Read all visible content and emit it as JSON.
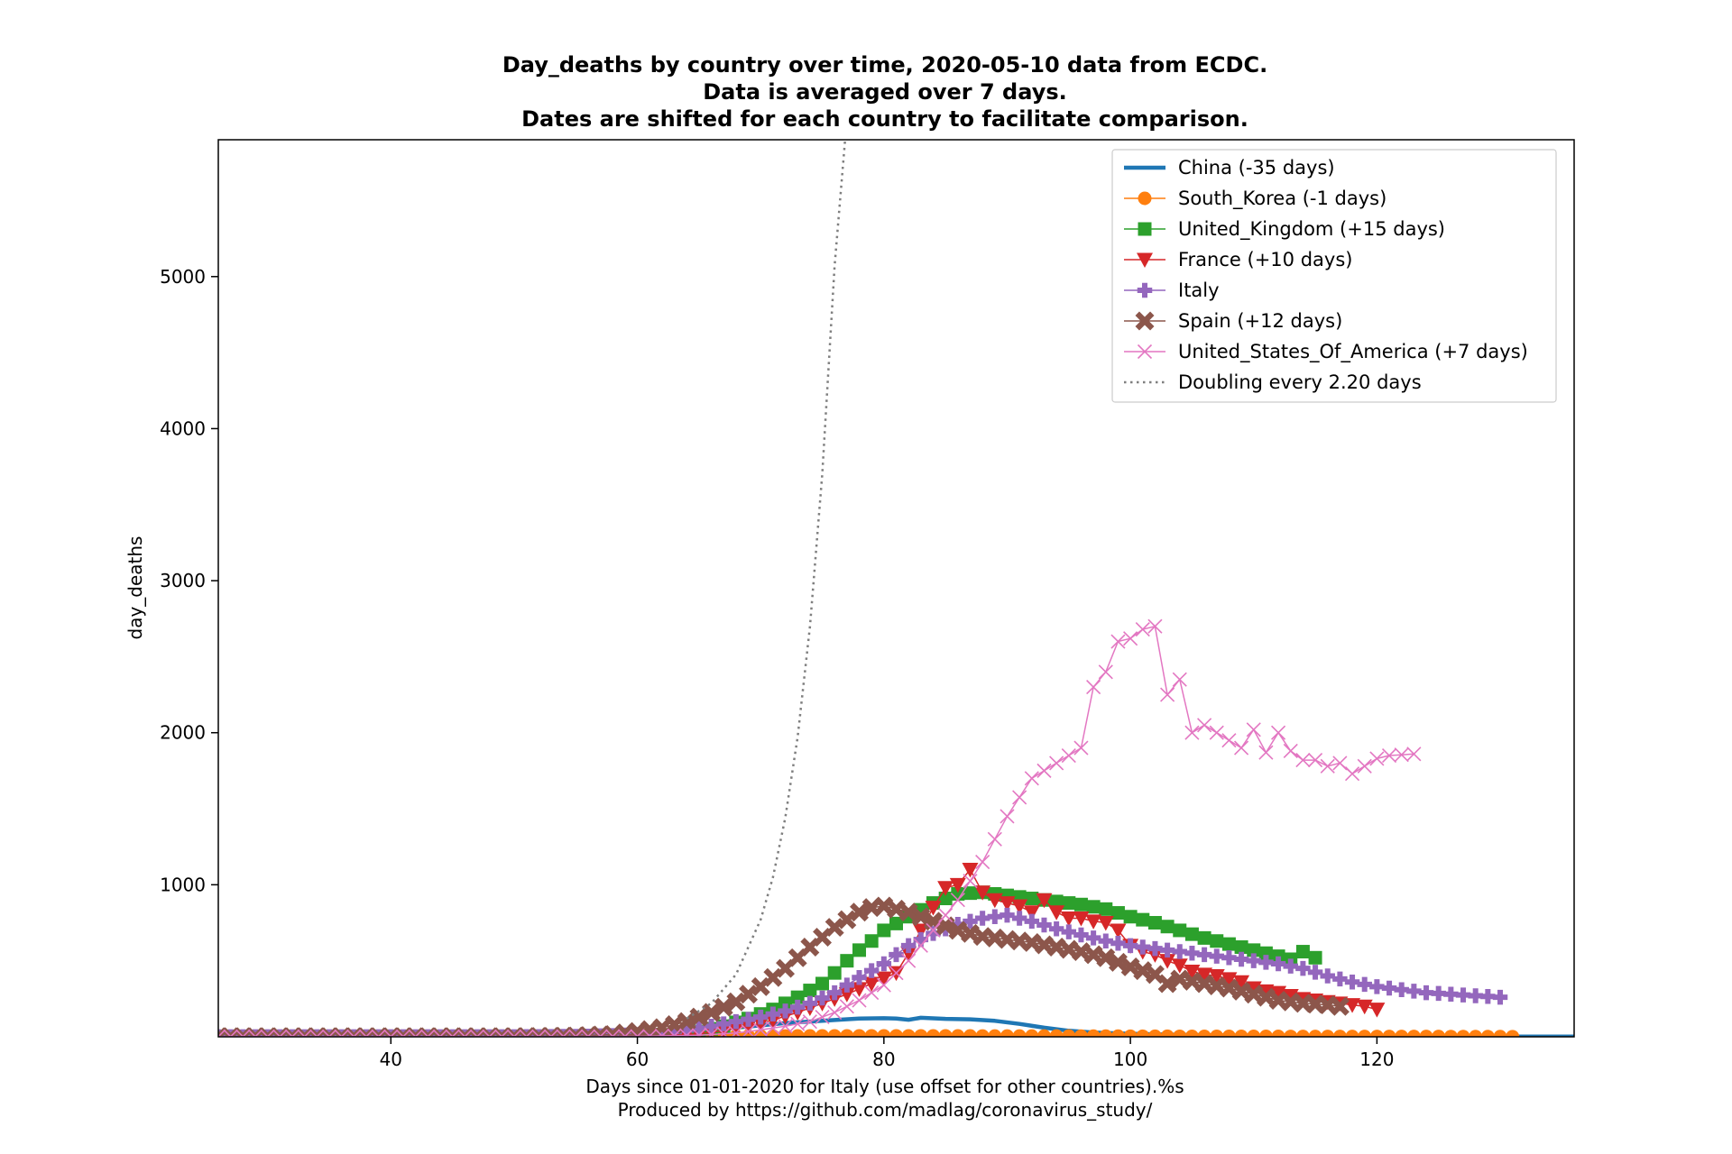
{
  "chart_data": {
    "type": "line",
    "title": [
      "Day_deaths by country over time, 2020-05-10 data from ECDC.",
      "Data is averaged over 7 days.",
      "Dates are shifted for each country to facilitate comparison."
    ],
    "xlabel": [
      "Days since 01-01-2020 for Italy (use offset for other countries).%s",
      "Produced by https://github.com/madlag/coronavirus_study/"
    ],
    "ylabel": "day_deaths",
    "xlim": [
      26,
      136
    ],
    "ylim": [
      0,
      5900
    ],
    "xticks": [
      40,
      60,
      80,
      100,
      120
    ],
    "yticks": [
      1000,
      2000,
      3000,
      4000,
      5000
    ],
    "grid": false,
    "legend_position": "top-right",
    "series": [
      {
        "name": "China (-35 days)",
        "color": "#1f77b4",
        "marker": "none",
        "linewidth": 4.5,
        "points": [
          [
            26,
            3
          ],
          [
            40,
            5
          ],
          [
            50,
            6
          ],
          [
            60,
            15
          ],
          [
            65,
            40
          ],
          [
            68,
            60
          ],
          [
            70,
            75
          ],
          [
            72,
            90
          ],
          [
            74,
            100
          ],
          [
            76,
            110
          ],
          [
            78,
            120
          ],
          [
            80,
            122
          ],
          [
            81,
            120
          ],
          [
            82,
            112
          ],
          [
            83,
            125
          ],
          [
            85,
            118
          ],
          [
            87,
            115
          ],
          [
            89,
            105
          ],
          [
            91,
            85
          ],
          [
            93,
            60
          ],
          [
            95,
            40
          ],
          [
            97,
            28
          ],
          [
            100,
            20
          ],
          [
            105,
            12
          ],
          [
            110,
            8
          ],
          [
            120,
            4
          ],
          [
            130,
            2
          ],
          [
            136,
            2
          ]
        ]
      },
      {
        "name": "South_Korea (-1 days)",
        "color": "#ff7f0e",
        "marker": "circle",
        "linewidth": 1.5,
        "points": [
          [
            26,
            2
          ],
          [
            40,
            2
          ],
          [
            50,
            2
          ],
          [
            60,
            3
          ],
          [
            65,
            4
          ],
          [
            70,
            5
          ],
          [
            75,
            6
          ],
          [
            80,
            6
          ],
          [
            85,
            6
          ],
          [
            90,
            5
          ],
          [
            95,
            5
          ],
          [
            100,
            4
          ],
          [
            105,
            3
          ],
          [
            110,
            3
          ],
          [
            115,
            2
          ],
          [
            120,
            2
          ],
          [
            125,
            2
          ],
          [
            131,
            1
          ]
        ]
      },
      {
        "name": "United_Kingdom (+15 days)",
        "color": "#2ca02c",
        "marker": "square",
        "linewidth": 1.5,
        "points": [
          [
            26,
            1
          ],
          [
            40,
            1
          ],
          [
            50,
            1
          ],
          [
            60,
            5
          ],
          [
            63,
            15
          ],
          [
            65,
            35
          ],
          [
            67,
            70
          ],
          [
            69,
            120
          ],
          [
            71,
            180
          ],
          [
            73,
            260
          ],
          [
            75,
            350
          ],
          [
            76,
            420
          ],
          [
            77,
            500
          ],
          [
            78,
            570
          ],
          [
            79,
            630
          ],
          [
            80,
            700
          ],
          [
            82,
            790
          ],
          [
            84,
            880
          ],
          [
            86,
            940
          ],
          [
            88,
            950
          ],
          [
            90,
            930
          ],
          [
            92,
            910
          ],
          [
            94,
            890
          ],
          [
            96,
            870
          ],
          [
            98,
            840
          ],
          [
            100,
            790
          ],
          [
            102,
            750
          ],
          [
            104,
            700
          ],
          [
            106,
            650
          ],
          [
            108,
            610
          ],
          [
            110,
            570
          ],
          [
            112,
            530
          ],
          [
            113,
            510
          ],
          [
            114,
            560
          ],
          [
            115,
            520
          ]
        ]
      },
      {
        "name": "France (+10 days)",
        "color": "#d62728",
        "marker": "triangle-down",
        "linewidth": 1.5,
        "points": [
          [
            26,
            1
          ],
          [
            40,
            1
          ],
          [
            50,
            1
          ],
          [
            60,
            3
          ],
          [
            63,
            10
          ],
          [
            65,
            20
          ],
          [
            67,
            40
          ],
          [
            69,
            70
          ],
          [
            71,
            110
          ],
          [
            73,
            160
          ],
          [
            75,
            220
          ],
          [
            77,
            280
          ],
          [
            79,
            350
          ],
          [
            81,
            420
          ],
          [
            82,
            550
          ],
          [
            83,
            700
          ],
          [
            84,
            850
          ],
          [
            85,
            980
          ],
          [
            86,
            1000
          ],
          [
            87,
            1100
          ],
          [
            88,
            950
          ],
          [
            89,
            900
          ],
          [
            90,
            880
          ],
          [
            91,
            860
          ],
          [
            92,
            820
          ],
          [
            93,
            900
          ],
          [
            94,
            820
          ],
          [
            95,
            780
          ],
          [
            96,
            780
          ],
          [
            97,
            760
          ],
          [
            98,
            750
          ],
          [
            99,
            700
          ],
          [
            100,
            600
          ],
          [
            101,
            560
          ],
          [
            102,
            540
          ],
          [
            103,
            500
          ],
          [
            104,
            470
          ],
          [
            105,
            430
          ],
          [
            106,
            410
          ],
          [
            107,
            400
          ],
          [
            108,
            380
          ],
          [
            109,
            360
          ],
          [
            110,
            320
          ],
          [
            111,
            300
          ],
          [
            112,
            290
          ],
          [
            113,
            270
          ],
          [
            114,
            250
          ],
          [
            115,
            240
          ],
          [
            116,
            230
          ],
          [
            117,
            220
          ],
          [
            118,
            210
          ],
          [
            119,
            200
          ],
          [
            120,
            180
          ]
        ]
      },
      {
        "name": "Italy",
        "color": "#9467bd",
        "marker": "plus",
        "linewidth": 1.5,
        "points": [
          [
            26,
            1
          ],
          [
            40,
            1
          ],
          [
            50,
            1
          ],
          [
            55,
            3
          ],
          [
            58,
            8
          ],
          [
            60,
            15
          ],
          [
            62,
            25
          ],
          [
            64,
            45
          ],
          [
            66,
            70
          ],
          [
            68,
            100
          ],
          [
            70,
            130
          ],
          [
            72,
            170
          ],
          [
            74,
            220
          ],
          [
            76,
            290
          ],
          [
            78,
            390
          ],
          [
            80,
            480
          ],
          [
            82,
            600
          ],
          [
            84,
            680
          ],
          [
            86,
            740
          ],
          [
            88,
            780
          ],
          [
            90,
            800
          ],
          [
            92,
            760
          ],
          [
            94,
            710
          ],
          [
            96,
            670
          ],
          [
            98,
            630
          ],
          [
            100,
            600
          ],
          [
            102,
            580
          ],
          [
            104,
            560
          ],
          [
            106,
            540
          ],
          [
            108,
            520
          ],
          [
            110,
            500
          ],
          [
            112,
            480
          ],
          [
            114,
            450
          ],
          [
            116,
            400
          ],
          [
            118,
            360
          ],
          [
            120,
            330
          ],
          [
            122,
            310
          ],
          [
            124,
            290
          ],
          [
            126,
            280
          ],
          [
            128,
            270
          ],
          [
            130,
            260
          ]
        ]
      },
      {
        "name": "Spain (+12 days)",
        "color": "#8c564b",
        "marker": "x-filled",
        "linewidth": 1.5,
        "points": [
          [
            26,
            1
          ],
          [
            40,
            1
          ],
          [
            50,
            1
          ],
          [
            55,
            5
          ],
          [
            58,
            15
          ],
          [
            60,
            35
          ],
          [
            62,
            60
          ],
          [
            64,
            100
          ],
          [
            66,
            160
          ],
          [
            68,
            230
          ],
          [
            70,
            330
          ],
          [
            72,
            450
          ],
          [
            74,
            590
          ],
          [
            76,
            720
          ],
          [
            78,
            820
          ],
          [
            79,
            850
          ],
          [
            80,
            860
          ],
          [
            82,
            820
          ],
          [
            84,
            760
          ],
          [
            86,
            700
          ],
          [
            88,
            660
          ],
          [
            90,
            640
          ],
          [
            92,
            620
          ],
          [
            94,
            590
          ],
          [
            96,
            560
          ],
          [
            98,
            520
          ],
          [
            100,
            460
          ],
          [
            102,
            410
          ],
          [
            103,
            350
          ],
          [
            104,
            380
          ],
          [
            106,
            350
          ],
          [
            108,
            320
          ],
          [
            110,
            280
          ],
          [
            112,
            240
          ],
          [
            114,
            220
          ],
          [
            116,
            210
          ],
          [
            117,
            200
          ]
        ]
      },
      {
        "name": "United_States_Of_America (+7 days)",
        "color": "#e377c2",
        "marker": "x",
        "linewidth": 1.5,
        "points": [
          [
            26,
            1
          ],
          [
            40,
            1
          ],
          [
            50,
            1
          ],
          [
            60,
            3
          ],
          [
            65,
            10
          ],
          [
            68,
            25
          ],
          [
            70,
            45
          ],
          [
            72,
            70
          ],
          [
            74,
            100
          ],
          [
            76,
            160
          ],
          [
            78,
            240
          ],
          [
            80,
            340
          ],
          [
            82,
            500
          ],
          [
            84,
            700
          ],
          [
            86,
            900
          ],
          [
            88,
            1150
          ],
          [
            90,
            1450
          ],
          [
            92,
            1700
          ],
          [
            94,
            1800
          ],
          [
            96,
            1900
          ],
          [
            97,
            2300
          ],
          [
            98,
            2400
          ],
          [
            99,
            2600
          ],
          [
            100,
            2620
          ],
          [
            101,
            2680
          ],
          [
            102,
            2700
          ],
          [
            103,
            2250
          ],
          [
            104,
            2350
          ],
          [
            105,
            2000
          ],
          [
            106,
            2050
          ],
          [
            108,
            1950
          ],
          [
            109,
            1900
          ],
          [
            110,
            2020
          ],
          [
            111,
            1870
          ],
          [
            112,
            2000
          ],
          [
            113,
            1880
          ],
          [
            114,
            1820
          ],
          [
            115,
            1820
          ],
          [
            116,
            1780
          ],
          [
            117,
            1800
          ],
          [
            118,
            1730
          ],
          [
            119,
            1780
          ],
          [
            120,
            1830
          ],
          [
            121,
            1850
          ],
          [
            123,
            1860
          ]
        ]
      },
      {
        "name": "Doubling every 2.20 days",
        "color": "#7f7f7f",
        "marker": "none",
        "linewidth": 2.5,
        "dash": "dotted",
        "points": [
          [
            64,
            120
          ],
          [
            66,
            220
          ],
          [
            68,
            410
          ],
          [
            70,
            770
          ],
          [
            71,
            1050
          ],
          [
            72,
            1440
          ],
          [
            73,
            1970
          ],
          [
            74,
            2700
          ],
          [
            75,
            3700
          ],
          [
            76,
            5070
          ],
          [
            77,
            6040
          ]
        ]
      }
    ]
  }
}
